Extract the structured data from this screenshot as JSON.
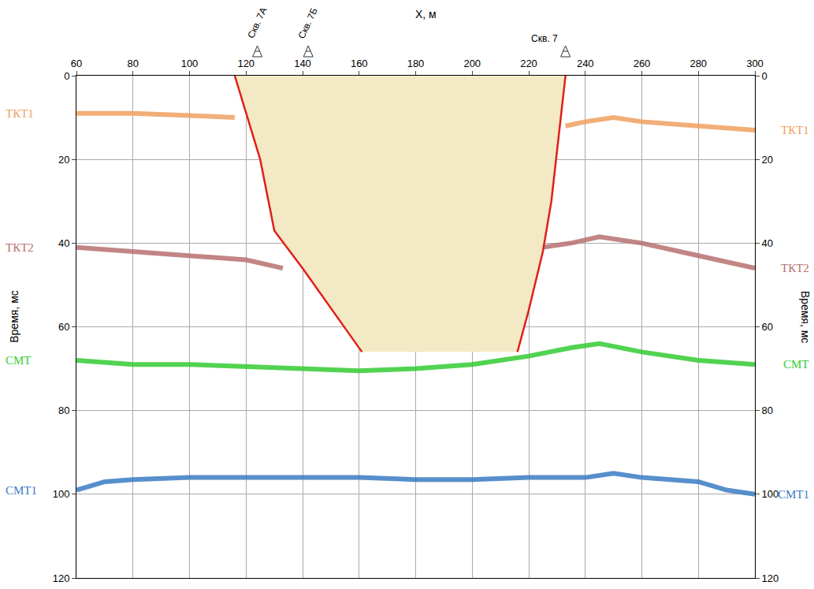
{
  "chart_data": {
    "type": "line",
    "x_label": "X, м",
    "y_label": "Время, мс",
    "xlim": [
      60,
      300
    ],
    "xticks": [
      60,
      80,
      100,
      120,
      140,
      160,
      180,
      200,
      220,
      240,
      260,
      280,
      300
    ],
    "ylim": [
      120,
      0
    ],
    "yticks": [
      0,
      20,
      40,
      60,
      80,
      100,
      120
    ],
    "y2lim": [
      120,
      0
    ],
    "y2ticks": [
      0,
      20,
      40,
      60,
      80,
      100,
      120
    ],
    "grid": true,
    "series": [
      {
        "name": "ТКТ1",
        "color": "#F0A060",
        "x": [
          60,
          80,
          100,
          116,
          null,
          233,
          240,
          250,
          260,
          280,
          300
        ],
        "values": [
          9,
          9,
          9.5,
          10,
          null,
          12,
          11,
          10,
          11,
          12,
          13
        ]
      },
      {
        "name": "ТКТ2",
        "color": "#B87070",
        "x": [
          60,
          80,
          100,
          120,
          133,
          null,
          225,
          235,
          245,
          260,
          280,
          300
        ],
        "values": [
          41,
          42,
          43,
          44,
          46,
          null,
          41,
          40,
          38.5,
          40,
          43,
          46
        ]
      },
      {
        "name": "СМТ",
        "color": "#33CC33",
        "x": [
          60,
          80,
          100,
          120,
          140,
          160,
          180,
          200,
          220,
          235,
          245,
          260,
          280,
          300
        ],
        "values": [
          68,
          69,
          69,
          69.5,
          70,
          70.5,
          70,
          69,
          67,
          65,
          64,
          66,
          68,
          69
        ]
      },
      {
        "name": "СМТ1",
        "color": "#3A7CC4",
        "axis": "y2",
        "x": [
          60,
          70,
          80,
          100,
          120,
          140,
          160,
          180,
          200,
          220,
          240,
          250,
          260,
          280,
          290,
          300
        ],
        "values": [
          99,
          97,
          96.5,
          96,
          96,
          96,
          96,
          96.5,
          96.5,
          96,
          96,
          95,
          96,
          97,
          99,
          100
        ]
      }
    ],
    "faults": {
      "color": "#E0201B",
      "lines": [
        {
          "x": [
            116,
            125,
            130,
            140,
            161
          ],
          "values": [
            0,
            20,
            37,
            46,
            66
          ]
        },
        {
          "x": [
            233,
            228,
            225,
            220,
            216
          ],
          "values": [
            0,
            30,
            42,
            56,
            66
          ]
        }
      ]
    },
    "fault_zone": {
      "color": "#F3E9C4"
    },
    "wells": [
      {
        "label": "Скв. 7А",
        "x": 124
      },
      {
        "label": "Скв. 7Б",
        "x": 142
      },
      {
        "label": "Скв. 7",
        "x": 233
      }
    ]
  }
}
